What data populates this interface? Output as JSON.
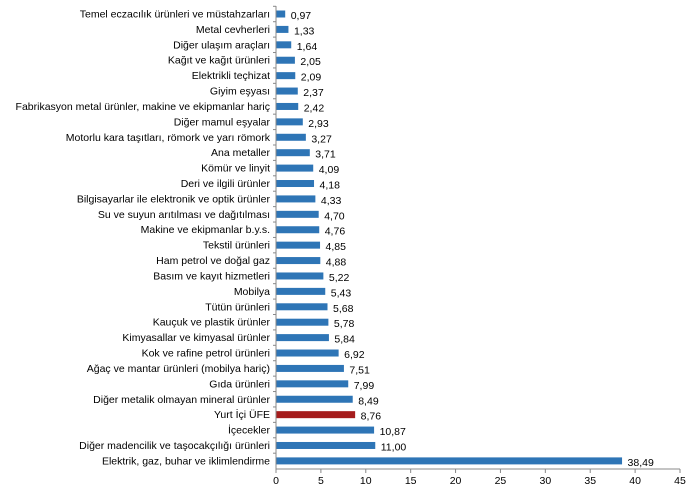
{
  "chart_data": {
    "type": "bar",
    "orientation": "horizontal",
    "title": "",
    "xlabel": "",
    "ylabel": "",
    "xlim": [
      0,
      45
    ],
    "x_ticks": [
      "0",
      "5",
      "10",
      "15",
      "20",
      "25",
      "30",
      "35",
      "40",
      "45"
    ],
    "grid": false,
    "legend": "none",
    "colors": {
      "default": "#2E75B6",
      "highlight": "#A51C1C"
    },
    "categories": [
      "Temel eczacılık ürünleri ve müstahzarları",
      "Metal cevherleri",
      "Diğer ulaşım araçları",
      "Kağıt ve kağıt ürünleri",
      "Elektrikli teçhizat",
      "Giyim eşyası",
      "Fabrikasyon metal ürünler, makine ve ekipmanlar hariç",
      "Diğer mamul eşyalar",
      "Motorlu kara taşıtları, römork ve yarı römork",
      "Ana metaller",
      "Kömür ve linyit",
      "Deri ve ilgili ürünler",
      "Bilgisayarlar ile elektronik ve optik ürünler",
      "Su ve suyun arıtılması ve dağıtılması",
      "Makine ve ekipmanlar b.y.s.",
      "Tekstil ürünleri",
      "Ham petrol ve doğal gaz",
      "Basım ve kayıt hizmetleri",
      "Mobilya",
      "Tütün ürünleri",
      "Kauçuk ve plastik ürünler",
      "Kimyasallar ve kimyasal ürünler",
      "Kok ve rafine petrol ürünleri",
      "Ağaç ve mantar ürünleri (mobilya hariç)",
      "Gıda ürünleri",
      "Diğer metalik olmayan mineral ürünler",
      "Yurt İçi ÜFE",
      "İçecekler",
      "Diğer madencilik ve taşocakçılığı ürünleri",
      "Elektrik, gaz, buhar ve iklimlendirme"
    ],
    "values": [
      0.97,
      1.33,
      1.64,
      2.05,
      2.09,
      2.37,
      2.42,
      2.93,
      3.27,
      3.71,
      4.09,
      4.18,
      4.33,
      4.7,
      4.76,
      4.85,
      4.88,
      5.22,
      5.43,
      5.68,
      5.78,
      5.84,
      6.92,
      7.51,
      7.99,
      8.49,
      8.76,
      10.87,
      11.0,
      38.49
    ],
    "data_labels": [
      "0,97",
      "1,33",
      "1,64",
      "2,05",
      "2,09",
      "2,37",
      "2,42",
      "2,93",
      "3,27",
      "3,71",
      "4,09",
      "4,18",
      "4,33",
      "4,70",
      "4,76",
      "4,85",
      "4,88",
      "5,22",
      "5,43",
      "5,68",
      "5,78",
      "5,84",
      "6,92",
      "7,51",
      "7,99",
      "8,49",
      "8,76",
      "10,87",
      "11,00",
      "38,49"
    ],
    "highlight_category": "Yurt İçi ÜFE"
  }
}
